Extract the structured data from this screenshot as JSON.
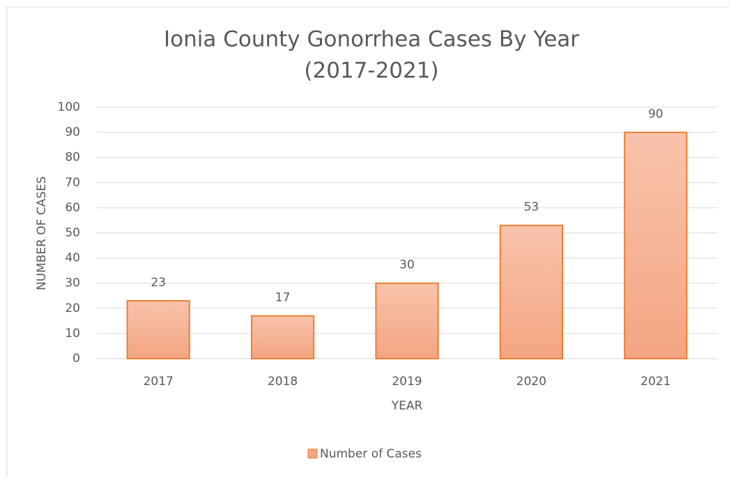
{
  "chart_data": {
    "type": "bar",
    "title": [
      "Ionia County Gonorrhea Cases By Year",
      "(2017-2021)"
    ],
    "x_label": "YEAR",
    "y_label": "NUMBER OF CASES",
    "categories": [
      "2017",
      "2018",
      "2019",
      "2020",
      "2021"
    ],
    "series": [
      {
        "name": "Number of Cases",
        "color": "#f4a582",
        "values": [
          23,
          17,
          30,
          53,
          90
        ]
      }
    ],
    "ylim": [
      0,
      100
    ],
    "yticks": [
      0,
      10,
      20,
      30,
      40,
      50,
      60,
      70,
      80,
      90,
      100
    ],
    "grid": true,
    "legend": "bottom"
  }
}
